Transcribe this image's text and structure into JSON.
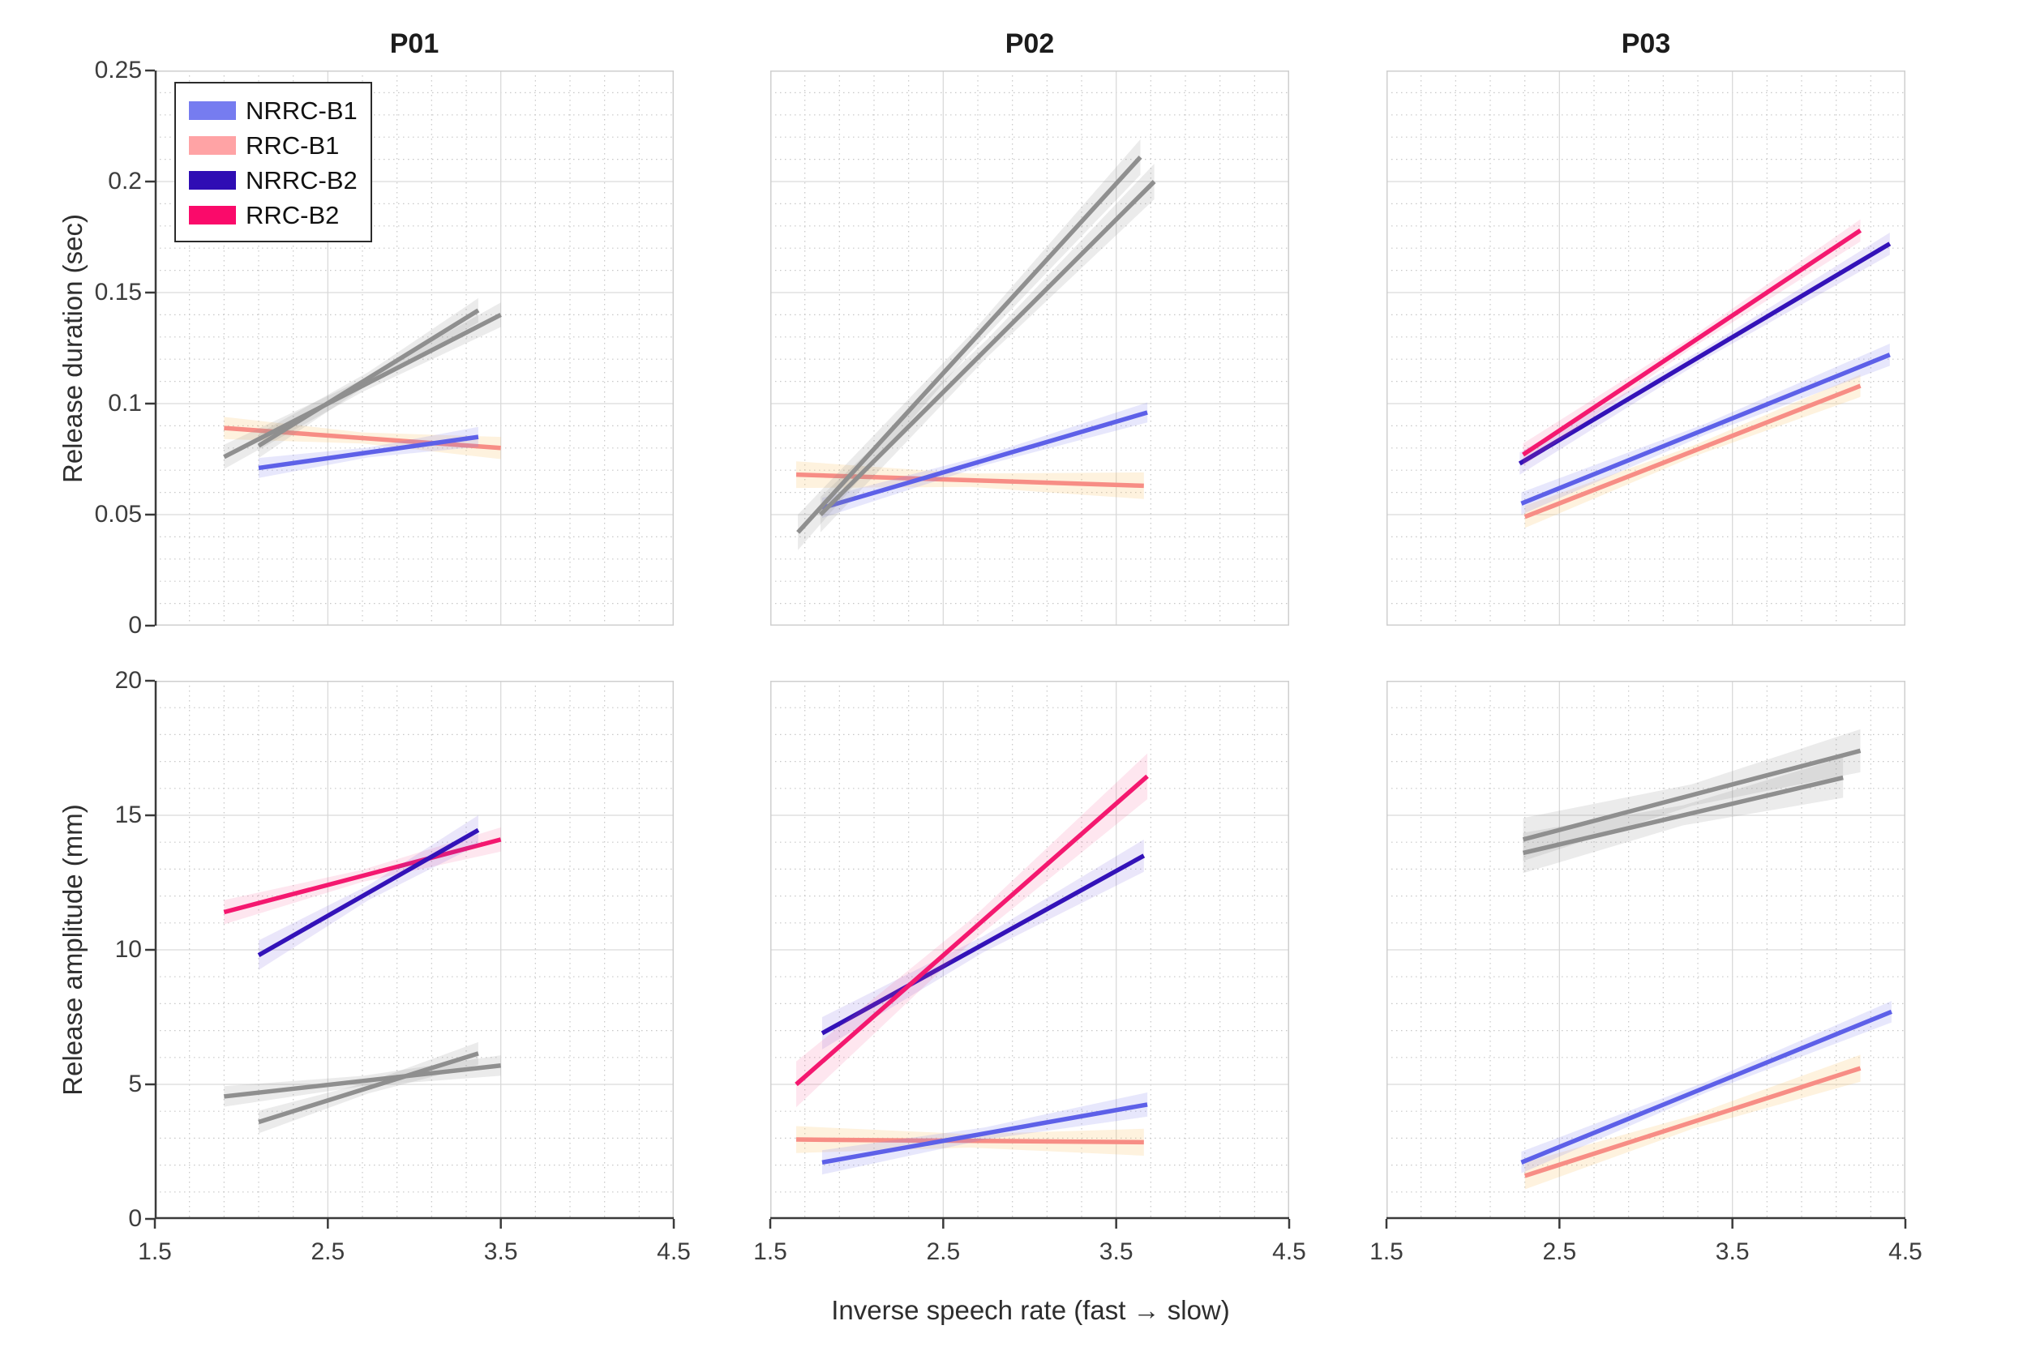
{
  "figure": {
    "ylabel_top": "Release duration (sec)",
    "ylabel_bottom": "Release amplitude (mm)",
    "xlabel": "Inverse speech rate (fast → slow)"
  },
  "legend": {
    "items": [
      {
        "label": "NRRC-B1",
        "color": "#767cf0"
      },
      {
        "label": "RRC-B1",
        "color": "#ffa3a5"
      },
      {
        "label": "NRRC-B2",
        "color": "#2f0db4"
      },
      {
        "label": "RRC-B2",
        "color": "#fa0a6a"
      }
    ]
  },
  "axes": {
    "x": {
      "min": 1.5,
      "max": 4.5,
      "major_ticks": [
        1.5,
        2.5,
        3.5,
        4.5
      ],
      "tick_labels": [
        "1.5",
        "2.5",
        "3.5",
        "4.5"
      ],
      "minor_step": 0.2
    },
    "y_duration": {
      "min": 0,
      "max": 0.25,
      "major_step": 0.05,
      "minor_step": 0.01,
      "tick_labels": [
        "0",
        "0.05",
        "0.1",
        "0.15",
        "0.2",
        "0.25"
      ]
    },
    "y_amplitude": {
      "min": 0,
      "max": 20,
      "major_step": 5,
      "minor_step": 1,
      "tick_labels": [
        "0",
        "5",
        "10",
        "15",
        "20"
      ]
    }
  },
  "colors": {
    "styles": {
      "nrrc_b1": {
        "line": "#5d60e8",
        "band": "rgba(120,122,240,0.18)"
      },
      "rrc_b1": {
        "line": "#f78d85",
        "band": "rgba(250,198,105,0.22)"
      },
      "nrrc_b2": {
        "line": "#3312b8",
        "band": "rgba(90,60,220,0.13)"
      },
      "rrc_b2": {
        "line": "#f4186f",
        "band": "rgba(248,80,140,0.14)"
      },
      "gray": {
        "line": "#8f8f8f",
        "band": "rgba(145,145,145,0.18)"
      }
    },
    "grid_major": "#d9d9d9",
    "grid_minor": "#c7c7c7",
    "box": "#cfcfcf",
    "axis": "#3a3a3a",
    "text": "#3d3d3d"
  },
  "chart_data": [
    {
      "id": "p01-duration",
      "type": "line",
      "row": 0,
      "col": 0,
      "title": "P01",
      "yaxis": "y_duration",
      "series": [
        {
          "name": "RRC-B1",
          "style": "rrc_b1",
          "muted": false,
          "x": [
            1.9,
            3.5
          ],
          "y": [
            0.089,
            0.08
          ],
          "band": 0.005
        },
        {
          "name": "NRRC-B1",
          "style": "nrrc_b1",
          "muted": false,
          "x": [
            2.1,
            3.37
          ],
          "y": [
            0.071,
            0.085
          ],
          "band": 0.0045
        },
        {
          "name": "RRC-B2",
          "style": "gray",
          "muted": true,
          "x": [
            1.9,
            3.5
          ],
          "y": [
            0.076,
            0.14
          ],
          "band": 0.0055
        },
        {
          "name": "NRRC-B2",
          "style": "gray",
          "muted": true,
          "x": [
            2.1,
            3.37
          ],
          "y": [
            0.081,
            0.142
          ],
          "band": 0.0055
        }
      ]
    },
    {
      "id": "p02-duration",
      "type": "line",
      "row": 0,
      "col": 1,
      "title": "P02",
      "yaxis": "y_duration",
      "series": [
        {
          "name": "RRC-B1",
          "style": "rrc_b1",
          "muted": false,
          "x": [
            1.65,
            3.66
          ],
          "y": [
            0.068,
            0.063
          ],
          "band": 0.006
        },
        {
          "name": "NRRC-B1",
          "style": "nrrc_b1",
          "muted": false,
          "x": [
            1.8,
            3.68
          ],
          "y": [
            0.053,
            0.096
          ],
          "band": 0.0045
        },
        {
          "name": "RRC-B2",
          "style": "gray",
          "muted": true,
          "x": [
            1.66,
            3.64
          ],
          "y": [
            0.042,
            0.211
          ],
          "band": 0.008
        },
        {
          "name": "NRRC-B2",
          "style": "gray",
          "muted": true,
          "x": [
            1.79,
            3.72
          ],
          "y": [
            0.05,
            0.2
          ],
          "band": 0.008
        }
      ]
    },
    {
      "id": "p03-duration",
      "type": "line",
      "row": 0,
      "col": 2,
      "title": "P03",
      "yaxis": "y_duration",
      "series": [
        {
          "name": "RRC-B1",
          "style": "rrc_b1",
          "muted": false,
          "x": [
            2.3,
            4.24
          ],
          "y": [
            0.049,
            0.108
          ],
          "band": 0.005
        },
        {
          "name": "NRRC-B1",
          "style": "nrrc_b1",
          "muted": false,
          "x": [
            2.28,
            4.41
          ],
          "y": [
            0.055,
            0.122
          ],
          "band": 0.005
        },
        {
          "name": "NRRC-B2",
          "style": "nrrc_b2",
          "muted": false,
          "x": [
            2.27,
            4.41
          ],
          "y": [
            0.073,
            0.172
          ],
          "band": 0.005
        },
        {
          "name": "RRC-B2",
          "style": "rrc_b2",
          "muted": false,
          "x": [
            2.29,
            4.24
          ],
          "y": [
            0.077,
            0.178
          ],
          "band": 0.005
        }
      ]
    },
    {
      "id": "p01-amplitude",
      "type": "line",
      "row": 1,
      "col": 0,
      "title": "",
      "yaxis": "y_amplitude",
      "series": [
        {
          "name": "RRC-B1",
          "style": "gray",
          "muted": true,
          "x": [
            1.9,
            3.5
          ],
          "y": [
            4.55,
            5.7
          ],
          "band": 0.38
        },
        {
          "name": "NRRC-B1",
          "style": "gray",
          "muted": true,
          "x": [
            2.1,
            3.37
          ],
          "y": [
            3.6,
            6.15
          ],
          "band": 0.42
        },
        {
          "name": "RRC-B2",
          "style": "rrc_b2",
          "muted": false,
          "x": [
            1.9,
            3.5
          ],
          "y": [
            11.4,
            14.1
          ],
          "band": 0.45
        },
        {
          "name": "NRRC-B2",
          "style": "nrrc_b2",
          "muted": false,
          "x": [
            2.1,
            3.37
          ],
          "y": [
            9.8,
            14.45
          ],
          "band": 0.55
        }
      ]
    },
    {
      "id": "p02-amplitude",
      "type": "line",
      "row": 1,
      "col": 1,
      "title": "",
      "yaxis": "y_amplitude",
      "series": [
        {
          "name": "RRC-B1",
          "style": "rrc_b1",
          "muted": false,
          "x": [
            1.65,
            3.66
          ],
          "y": [
            2.95,
            2.85
          ],
          "band": 0.5
        },
        {
          "name": "NRRC-B1",
          "style": "nrrc_b1",
          "muted": false,
          "x": [
            1.8,
            3.68
          ],
          "y": [
            2.1,
            4.25
          ],
          "band": 0.45
        },
        {
          "name": "NRRC-B2",
          "style": "nrrc_b2",
          "muted": false,
          "x": [
            1.8,
            3.66
          ],
          "y": [
            6.9,
            13.5
          ],
          "band": 0.6
        },
        {
          "name": "RRC-B2",
          "style": "rrc_b2",
          "muted": false,
          "x": [
            1.65,
            3.68
          ],
          "y": [
            5.0,
            16.45
          ],
          "band": 0.85
        }
      ]
    },
    {
      "id": "p03-amplitude",
      "type": "line",
      "row": 1,
      "col": 2,
      "title": "",
      "yaxis": "y_amplitude",
      "series": [
        {
          "name": "RRC-B1",
          "style": "rrc_b1",
          "muted": false,
          "x": [
            2.3,
            4.24
          ],
          "y": [
            1.6,
            5.6
          ],
          "band": 0.5
        },
        {
          "name": "NRRC-B1",
          "style": "nrrc_b1",
          "muted": false,
          "x": [
            2.28,
            4.42
          ],
          "y": [
            2.1,
            7.7
          ],
          "band": 0.4
        },
        {
          "name": "NRRC-B2",
          "style": "gray",
          "muted": true,
          "x": [
            2.29,
            4.14
          ],
          "y": [
            13.6,
            16.4
          ],
          "band": 0.75
        },
        {
          "name": "RRC-B2",
          "style": "gray",
          "muted": true,
          "x": [
            2.29,
            4.24
          ],
          "y": [
            14.1,
            17.4
          ],
          "band": 0.8
        }
      ]
    }
  ]
}
